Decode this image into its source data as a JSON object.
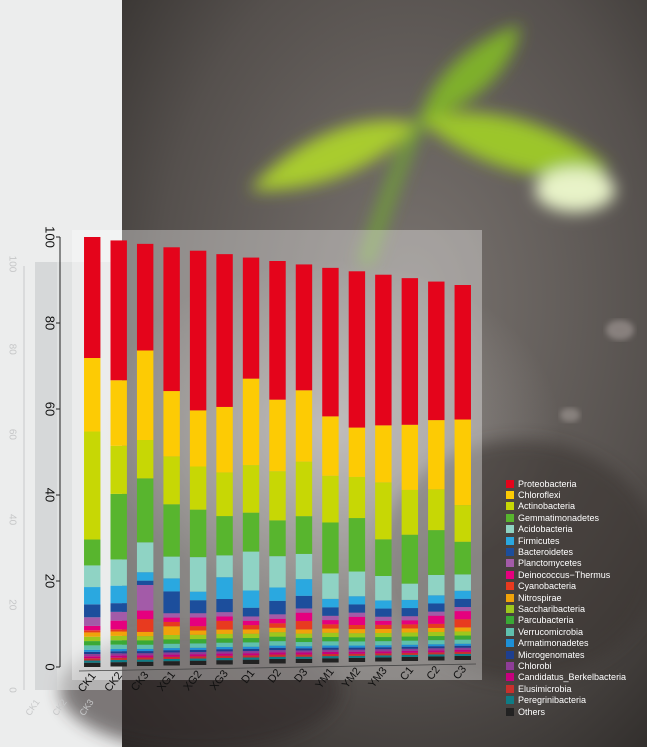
{
  "chart_data": {
    "type": "bar",
    "stacked": true,
    "title": "",
    "xlabel": "",
    "ylabel": "",
    "ylim": [
      0,
      100
    ],
    "yticks": [
      0,
      20,
      40,
      60,
      80,
      100
    ],
    "categories": [
      "CK1",
      "CK2",
      "CK3",
      "XG1",
      "XG2",
      "XG3",
      "D1",
      "D2",
      "D3",
      "YM1",
      "YM2",
      "YM3",
      "C1",
      "C2",
      "C3"
    ],
    "legend_position": "bottom-right",
    "series": [
      {
        "name": "Proteobacteria",
        "color": "#e4041b",
        "values": [
          28,
          32,
          25,
          33,
          37,
          35,
          28,
          31,
          30,
          35,
          38,
          37,
          36,
          34,
          33
        ]
      },
      {
        "name": "Chloroflexi",
        "color": "#fdcb04",
        "values": [
          17,
          15,
          21,
          15,
          13,
          15,
          20,
          16,
          17,
          14,
          12,
          14,
          16,
          17,
          21
        ]
      },
      {
        "name": "Actinobacteria",
        "color": "#c7d705",
        "values": [
          25,
          11,
          9,
          11,
          10,
          10,
          11,
          11,
          13,
          11,
          10,
          14,
          11,
          10,
          9
        ]
      },
      {
        "name": "Gemmatimonadetes",
        "color": "#58b52e",
        "values": [
          6,
          15,
          15,
          12,
          11,
          9,
          9,
          8,
          9,
          12,
          13,
          9,
          12,
          11,
          8
        ]
      },
      {
        "name": "Acidobacteria",
        "color": "#8fd3c4",
        "values": [
          5,
          6,
          7,
          5,
          8,
          5,
          9,
          7,
          6,
          6,
          6,
          6,
          4,
          5,
          4
        ]
      },
      {
        "name": "Firmicutes",
        "color": "#2aa8e0",
        "values": [
          4,
          4,
          2,
          3,
          2,
          5,
          4,
          3,
          4,
          2,
          2,
          2,
          2,
          2,
          2
        ]
      },
      {
        "name": "Bacteroidetes",
        "color": "#1c4e9c",
        "values": [
          3,
          2,
          1,
          5,
          3,
          3,
          2,
          3,
          3,
          2,
          2,
          2,
          2,
          2,
          2
        ]
      },
      {
        "name": "Planctomycetes",
        "color": "#a35ba8",
        "values": [
          2,
          2,
          6,
          1,
          1,
          1,
          1,
          1,
          1,
          1,
          1,
          1,
          1,
          1,
          1
        ]
      },
      {
        "name": "Deinococcus−Thermus",
        "color": "#e5007e",
        "values": [
          1,
          2,
          2,
          1,
          2,
          1,
          1,
          1,
          2,
          1,
          2,
          1,
          1,
          2,
          2
        ]
      },
      {
        "name": "Cyanobacteria",
        "color": "#e83a1f",
        "values": [
          0.5,
          0.5,
          3,
          1,
          1,
          2,
          1,
          1,
          2,
          1,
          1,
          1,
          1,
          1,
          2
        ]
      },
      {
        "name": "Nitrospirae",
        "color": "#f0a30a",
        "values": [
          1,
          1,
          1,
          2,
          1,
          1,
          1,
          1,
          1,
          1,
          1,
          1,
          1,
          1,
          1
        ]
      },
      {
        "name": "Saccharibacteria",
        "color": "#9dc71d",
        "values": [
          1,
          1,
          1,
          1,
          1,
          1,
          1,
          1,
          1,
          1,
          1,
          1,
          1,
          1,
          1
        ]
      },
      {
        "name": "Parcubacteria",
        "color": "#3aa935",
        "values": [
          1,
          1,
          1,
          1,
          1,
          1,
          1,
          1,
          1,
          1,
          1,
          1,
          1,
          1,
          1
        ]
      },
      {
        "name": "Verrucomicrobia",
        "color": "#5fc0ad",
        "values": [
          1,
          1,
          1,
          1,
          1,
          1,
          1,
          1,
          1,
          1,
          1,
          1,
          1,
          1,
          1
        ]
      },
      {
        "name": "Armatimonadetes",
        "color": "#1e90d6",
        "values": [
          0.5,
          0.5,
          0.5,
          0.5,
          0.5,
          0.5,
          0.5,
          0.5,
          0.5,
          0.5,
          0.5,
          0.5,
          0.5,
          0.5,
          0.5
        ]
      },
      {
        "name": "Microgenomates",
        "color": "#1e3f8f",
        "values": [
          0.5,
          0.5,
          0.5,
          0.5,
          0.5,
          0.5,
          0.5,
          0.5,
          0.5,
          0.5,
          0.5,
          0.5,
          0.5,
          0.5,
          0.5
        ]
      },
      {
        "name": "Chlorobi",
        "color": "#8e3d97",
        "values": [
          0.5,
          0.5,
          0.5,
          0.5,
          0.5,
          0.5,
          0.5,
          0.5,
          0.5,
          0.5,
          0.5,
          0.5,
          0.5,
          0.5,
          0.5
        ]
      },
      {
        "name": "Candidatus_Berkelbacteria",
        "color": "#c7007d",
        "values": [
          0.5,
          0.5,
          0.5,
          0.5,
          0.5,
          0.5,
          0.5,
          0.5,
          0.5,
          0.5,
          0.5,
          0.5,
          0.5,
          0.5,
          0.5
        ]
      },
      {
        "name": "Elusimicrobia",
        "color": "#c9302c",
        "values": [
          0.5,
          0.5,
          0.5,
          0.5,
          0.5,
          0.5,
          0.5,
          0.5,
          0.5,
          0.5,
          0.5,
          0.5,
          0.5,
          0.5,
          0.5
        ]
      },
      {
        "name": "Peregrinibacteria",
        "color": "#0f7c85",
        "values": [
          0.5,
          0.5,
          0.5,
          0.5,
          0.5,
          0.5,
          0.5,
          0.5,
          0.5,
          0.5,
          0.5,
          0.5,
          0.5,
          0.5,
          0.5
        ]
      },
      {
        "name": "Others",
        "color": "#222222",
        "values": [
          1,
          1,
          1,
          1,
          1,
          1,
          1,
          1,
          1,
          1,
          1,
          1,
          1,
          1,
          1
        ]
      }
    ]
  }
}
